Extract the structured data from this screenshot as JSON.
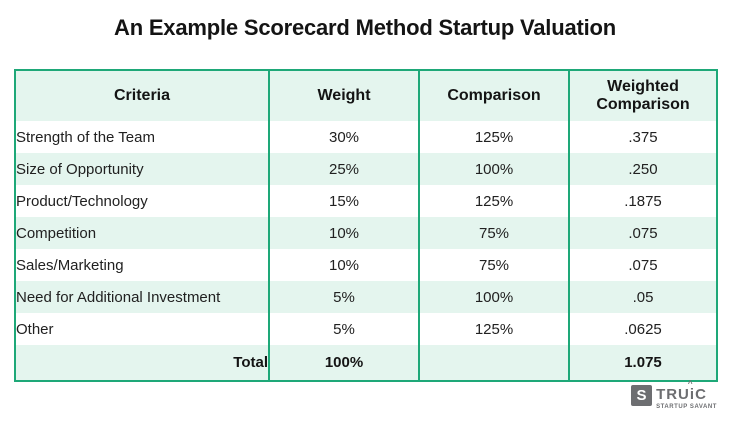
{
  "chart_data": {
    "type": "table",
    "title": "An Example Scorecard Method Startup Valuation",
    "columns": [
      "Criteria",
      "Weight",
      "Comparison",
      "Weighted Comparison"
    ],
    "rows": [
      [
        "Strength of the Team",
        "30%",
        "125%",
        ".375"
      ],
      [
        "Size of Opportunity",
        "25%",
        "100%",
        ".250"
      ],
      [
        "Product/Technology",
        "15%",
        "125%",
        ".1875"
      ],
      [
        "Competition",
        "10%",
        "75%",
        ".075"
      ],
      [
        "Sales/Marketing",
        "10%",
        "75%",
        ".075"
      ],
      [
        "Need for Additional Investment",
        "5%",
        "100%",
        ".05"
      ],
      [
        "Other",
        "5%",
        "125%",
        ".0625"
      ],
      [
        "Total",
        "100%",
        "",
        "1.075"
      ]
    ],
    "layout_hints": {
      "striped_rows": true,
      "header_background": "#e4f5ee",
      "stripe_background": "#e4f5ee",
      "border_color": "#1ea878",
      "total_row_bold": true
    }
  },
  "colors": {
    "accent_green": "#1ea878",
    "row_mint": "#e4f5ee",
    "text_dark": "#1e1e1e",
    "logo_gray": "#6d6e71"
  },
  "logo": {
    "badge_letter": "S",
    "brand_prefix": "TRU",
    "brand_i": "i",
    "brand_caret": "^",
    "brand_suffix": "C",
    "tagline": "STARTUP SAVANT"
  }
}
